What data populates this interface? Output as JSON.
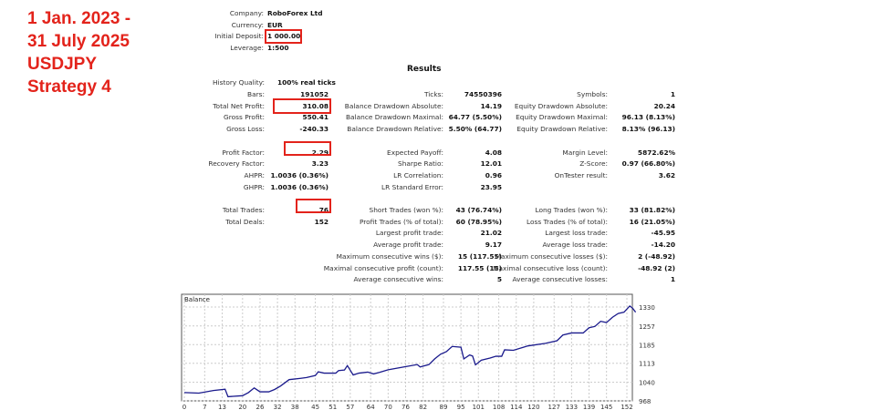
{
  "caption": {
    "lines": [
      "1 Jan. 2023 -",
      "31 July 2025",
      "USDJPY",
      "Strategy 4"
    ]
  },
  "header": [
    {
      "label": "Company:",
      "value": "RoboForex Ltd"
    },
    {
      "label": "Currency:",
      "value": "EUR"
    },
    {
      "label": "Initial Deposit:",
      "value": "1 000.00"
    },
    {
      "label": "Leverage:",
      "value": "1:500"
    }
  ],
  "results_title": "Results",
  "history_quality": {
    "label": "History Quality:",
    "value": "100% real ticks"
  },
  "rows": [
    [
      [
        "Bars:",
        "191052"
      ],
      [
        "Ticks:",
        "74550396"
      ],
      [
        "Symbols:",
        "1"
      ]
    ],
    [
      [
        "Total Net Profit:",
        "310.08"
      ],
      [
        "Balance Drawdown Absolute:",
        "14.19"
      ],
      [
        "Equity Drawdown Absolute:",
        "20.24"
      ]
    ],
    [
      [
        "Gross Profit:",
        "550.41"
      ],
      [
        "Balance Drawdown Maximal:",
        "64.77 (5.50%)"
      ],
      [
        "Equity Drawdown Maximal:",
        "96.13 (8.13%)"
      ]
    ],
    [
      [
        "Gross Loss:",
        "-240.33"
      ],
      [
        "Balance Drawdown Relative:",
        "5.50% (64.77)"
      ],
      [
        "Equity Drawdown Relative:",
        "8.13% (96.13)"
      ]
    ],
    null,
    [
      [
        "Profit Factor:",
        "2.29"
      ],
      [
        "Expected Payoff:",
        "4.08"
      ],
      [
        "Margin Level:",
        "5872.62%"
      ]
    ],
    [
      [
        "Recovery Factor:",
        "3.23"
      ],
      [
        "Sharpe Ratio:",
        "12.01"
      ],
      [
        "Z-Score:",
        "0.97 (66.80%)"
      ]
    ],
    [
      [
        "AHPR:",
        "1.0036 (0.36%)"
      ],
      [
        "LR Correlation:",
        "0.96"
      ],
      [
        "OnTester result:",
        "3.62"
      ]
    ],
    [
      [
        "GHPR:",
        "1.0036 (0.36%)"
      ],
      [
        "LR Standard Error:",
        "23.95"
      ],
      null
    ],
    null,
    [
      [
        "Total Trades:",
        "76"
      ],
      [
        "Short Trades (won %):",
        "43 (76.74%)"
      ],
      [
        "Long Trades (won %):",
        "33 (81.82%)"
      ]
    ],
    [
      [
        "Total Deals:",
        "152"
      ],
      [
        "Profit Trades (% of total):",
        "60 (78.95%)"
      ],
      [
        "Loss Trades (% of total):",
        "16 (21.05%)"
      ]
    ],
    [
      null,
      [
        "Largest profit trade:",
        "21.02"
      ],
      [
        "Largest loss trade:",
        "-45.95"
      ]
    ],
    [
      null,
      [
        "Average profit trade:",
        "9.17"
      ],
      [
        "Average loss trade:",
        "-14.20"
      ]
    ],
    [
      null,
      [
        "Maximum consecutive wins ($):",
        "15 (117.55)"
      ],
      [
        "Maximum consecutive losses ($):",
        "2 (-48.92)"
      ]
    ],
    [
      null,
      [
        "Maximal consecutive profit (count):",
        "117.55 (15)"
      ],
      [
        "Maximal consecutive loss (count):",
        "-48.92 (2)"
      ]
    ],
    [
      null,
      [
        "Average consecutive wins:",
        "5"
      ],
      [
        "Average consecutive losses:",
        "1"
      ]
    ]
  ],
  "highlight_color": "#e3231b",
  "chart_data": {
    "type": "line",
    "title": "Balance",
    "line_color": "#1a1a8c",
    "xlim": [
      0,
      155
    ],
    "ylim": [
      968,
      1350
    ],
    "x_ticks": [
      "0",
      "7",
      "13",
      "20",
      "26",
      "32",
      "38",
      "45",
      "51",
      "57",
      "64",
      "70",
      "76",
      "82",
      "89",
      "95",
      "101",
      "108",
      "114",
      "120",
      "127",
      "133",
      "139",
      "145",
      "152"
    ],
    "y_ticks": [
      "1330",
      "1257",
      "1185",
      "1113",
      "1040",
      "968"
    ],
    "series": [
      {
        "name": "Balance",
        "x": [
          0,
          5,
          10,
          14,
          15,
          20,
          22,
          24,
          26,
          29,
          31,
          33,
          36,
          40,
          42,
          45,
          46,
          48,
          52,
          53,
          55,
          56,
          58,
          60,
          63,
          65,
          67,
          70,
          75,
          80,
          81,
          84,
          86,
          88,
          90,
          92,
          95,
          96,
          98,
          99,
          100,
          102,
          105,
          107,
          109,
          110,
          113,
          118,
          124,
          128,
          130,
          133,
          137,
          139,
          141,
          143,
          145,
          147,
          149,
          151,
          153,
          154,
          155
        ],
        "y": [
          1000,
          998,
          1008,
          1013,
          984,
          988,
          1000,
          1018,
          1003,
          1003,
          1012,
          1025,
          1050,
          1055,
          1058,
          1066,
          1080,
          1075,
          1075,
          1085,
          1087,
          1104,
          1068,
          1075,
          1079,
          1072,
          1078,
          1088,
          1098,
          1108,
          1099,
          1108,
          1130,
          1148,
          1158,
          1178,
          1175,
          1130,
          1145,
          1141,
          1107,
          1125,
          1133,
          1140,
          1140,
          1165,
          1163,
          1180,
          1190,
          1200,
          1222,
          1230,
          1230,
          1250,
          1255,
          1275,
          1270,
          1290,
          1305,
          1310,
          1334,
          1325,
          1310
        ]
      }
    ]
  }
}
